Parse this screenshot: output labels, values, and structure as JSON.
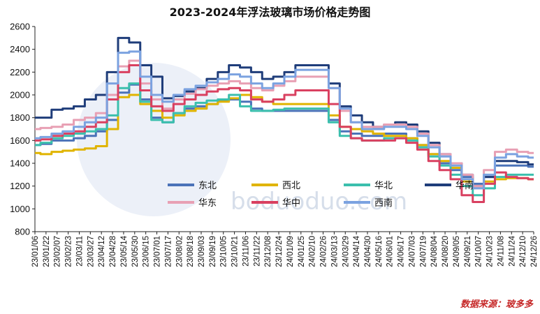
{
  "title": "2023-2024年浮法玻璃市场价格走势图",
  "source": "数据来源：玻多多",
  "watermark": "boduoduo.com",
  "chart_data": {
    "type": "line",
    "title": "2023-2024年浮法玻璃市场价格走势图",
    "xlabel": "",
    "ylabel": "",
    "ylim": [
      800,
      2600
    ],
    "yticks": [
      800,
      1000,
      1200,
      1400,
      1600,
      1800,
      2000,
      2200,
      2400,
      2600
    ],
    "grid": false,
    "legend_position": "lower-right (inside plot)",
    "x": [
      "23/01/06",
      "23/01/22",
      "23/02/07",
      "23/02/23",
      "23/03/11",
      "23/03/27",
      "23/04/12",
      "23/04/28",
      "23/05/14",
      "23/05/30",
      "23/06/15",
      "23/07/01",
      "23/07/17",
      "23/08/02",
      "23/08/18",
      "23/09/03",
      "23/09/19",
      "23/10/05",
      "23/10/21",
      "23/11/06",
      "23/11/22",
      "23/12/08",
      "23/12/24",
      "24/01/09",
      "24/01/25",
      "24/02/10",
      "24/02/26",
      "24/03/13",
      "24/03/29",
      "24/04/14",
      "24/04/30",
      "24/05/16",
      "24/06/01",
      "24/06/17",
      "24/07/03",
      "24/07/19",
      "24/08/04",
      "24/08/20",
      "24/09/05",
      "24/09/21",
      "24/10/07",
      "24/10/23",
      "24/11/08",
      "24/11/24",
      "24/12/10",
      "24/12/26"
    ],
    "series": [
      {
        "name": "东北",
        "color": "#4a72b8",
        "values": [
          1560,
          1570,
          1600,
          1600,
          1620,
          1640,
          1680,
          1780,
          2020,
          2090,
          1960,
          1800,
          1760,
          1840,
          1880,
          1900,
          1920,
          1950,
          1960,
          1940,
          1880,
          1860,
          1860,
          1860,
          1860,
          1860,
          1860,
          1780,
          1680,
          1660,
          1640,
          1640,
          1660,
          1660,
          1620,
          1560,
          1480,
          1400,
          1340,
          1280,
          1220,
          1280,
          1380,
          1380,
          1380,
          1370
        ]
      },
      {
        "name": "西北",
        "color": "#e0b400",
        "values": [
          1490,
          1480,
          1500,
          1510,
          1520,
          1530,
          1550,
          1700,
          1980,
          2000,
          1920,
          1860,
          1800,
          1820,
          1860,
          1880,
          1920,
          1940,
          1970,
          2000,
          1980,
          1940,
          1920,
          1920,
          1920,
          1920,
          1920,
          1820,
          1720,
          1700,
          1680,
          1660,
          1640,
          1640,
          1620,
          1560,
          1480,
          1420,
          1360,
          1240,
          1200,
          1240,
          1260,
          1270,
          1270,
          1260
        ]
      },
      {
        "name": "华北",
        "color": "#3bbfad",
        "values": [
          1560,
          1580,
          1620,
          1640,
          1660,
          1680,
          1700,
          1820,
          2060,
          2100,
          1940,
          1780,
          1760,
          1840,
          1900,
          1930,
          1950,
          1960,
          2000,
          1900,
          1860,
          1860,
          1870,
          1880,
          1880,
          1880,
          1880,
          1760,
          1640,
          1620,
          1600,
          1600,
          1620,
          1620,
          1600,
          1540,
          1460,
          1380,
          1300,
          1200,
          1120,
          1180,
          1280,
          1300,
          1300,
          1300
        ]
      },
      {
        "name": "华南",
        "color": "#1f3d7a",
        "values": [
          1800,
          1800,
          1870,
          1880,
          1900,
          1960,
          2000,
          2200,
          2500,
          2460,
          2260,
          2160,
          1970,
          1990,
          2030,
          2060,
          2140,
          2200,
          2260,
          2240,
          2200,
          2140,
          2160,
          2200,
          2260,
          2260,
          2260,
          2100,
          1900,
          1820,
          1760,
          1720,
          1740,
          1760,
          1740,
          1680,
          1580,
          1480,
          1400,
          1300,
          1200,
          1280,
          1420,
          1420,
          1410,
          1390
        ]
      },
      {
        "name": "华东",
        "color": "#e8a0b4",
        "values": [
          1700,
          1710,
          1720,
          1740,
          1780,
          1800,
          1840,
          2000,
          2250,
          2300,
          2100,
          1960,
          1880,
          1960,
          2010,
          2050,
          2080,
          2100,
          2120,
          2100,
          2060,
          2040,
          2080,
          2120,
          2160,
          2160,
          2160,
          2060,
          1860,
          1760,
          1720,
          1720,
          1740,
          1740,
          1720,
          1660,
          1560,
          1480,
          1400,
          1300,
          1200,
          1340,
          1500,
          1520,
          1500,
          1490
        ]
      },
      {
        "name": "华中",
        "color": "#d94060",
        "values": [
          1600,
          1610,
          1640,
          1660,
          1680,
          1720,
          1760,
          1960,
          2200,
          2260,
          2040,
          1900,
          1860,
          1920,
          1960,
          2000,
          2030,
          2050,
          2060,
          2040,
          1960,
          1940,
          1960,
          2000,
          2040,
          2040,
          2040,
          1920,
          1720,
          1620,
          1600,
          1600,
          1600,
          1620,
          1580,
          1520,
          1420,
          1340,
          1260,
          1120,
          1060,
          1220,
          1320,
          1280,
          1270,
          1260
        ]
      },
      {
        "name": "西南",
        "color": "#7ba2e0",
        "values": [
          1620,
          1630,
          1660,
          1680,
          1720,
          1760,
          1800,
          2100,
          2370,
          2380,
          2160,
          2000,
          1940,
          2000,
          2050,
          2080,
          2110,
          2140,
          2180,
          2160,
          2100,
          2060,
          2100,
          2160,
          2220,
          2220,
          2220,
          2060,
          1880,
          1760,
          1700,
          1700,
          1720,
          1720,
          1700,
          1640,
          1540,
          1460,
          1380,
          1260,
          1180,
          1300,
          1450,
          1480,
          1460,
          1450
        ]
      }
    ]
  }
}
